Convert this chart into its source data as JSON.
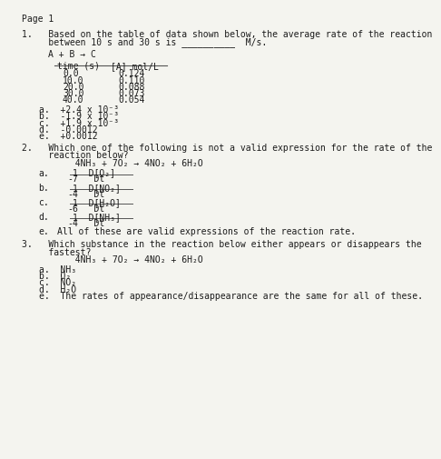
{
  "bg_color": "#f4f4ef",
  "font_family": "monospace",
  "page_label": "Page 1",
  "q1_line1": "1.   Based on the table of data shown below, the average rate of the reaction",
  "q1_line2": "     between 10 s and 30 s is __________  M/s.",
  "q1_reaction": "A + B → C",
  "q1_header1": "time (s)",
  "q1_header2": "[A] mol/L",
  "q1_table": [
    [
      "0.0",
      "0.124"
    ],
    [
      "10.0",
      "0.110"
    ],
    [
      "20.0",
      "0.088"
    ],
    [
      "30.0",
      "0.073"
    ],
    [
      "40.0",
      "0.054"
    ]
  ],
  "q1_choices": [
    "a.  +2.4 x 10⁻³",
    "b.  -1.9 x 10⁻³",
    "c.  +1.9 x 10⁻³",
    "d.  -0.0012",
    "e.  +0.0012"
  ],
  "q2_line1": "2.   Which one of the following is not a valid expression for the rate of the",
  "q2_line2": "     reaction below?",
  "q2_reaction": "          4NH₃ + 7O₂ → 4NO₂ + 6H₂O",
  "q2a_num": "1  D[O₂]",
  "q2a_den": "7   Dt",
  "q2b_num": "1  D[NO₂]",
  "q2b_den": "4   Dt",
  "q2c_num": "1  D[H₂O]",
  "q2c_den": "6   Dt",
  "q2d_num": "1  D[NH₃]",
  "q2d_den": "4   Dt",
  "q2e": "All of these are valid expressions of the reaction rate.",
  "q3_line1": "3.   Which substance in the reaction below either appears or disappears the",
  "q3_line2": "     fastest?",
  "q3_reaction": "          4NH₃ + 7O₂ → 4NO₂ + 6H₂O",
  "q3_choices": [
    "a.  NH₃",
    "b.  O₂",
    "c.  NO₂",
    "d.  H₂O",
    "e.  The rates of appearance/disappearance are the same for all of these."
  ]
}
